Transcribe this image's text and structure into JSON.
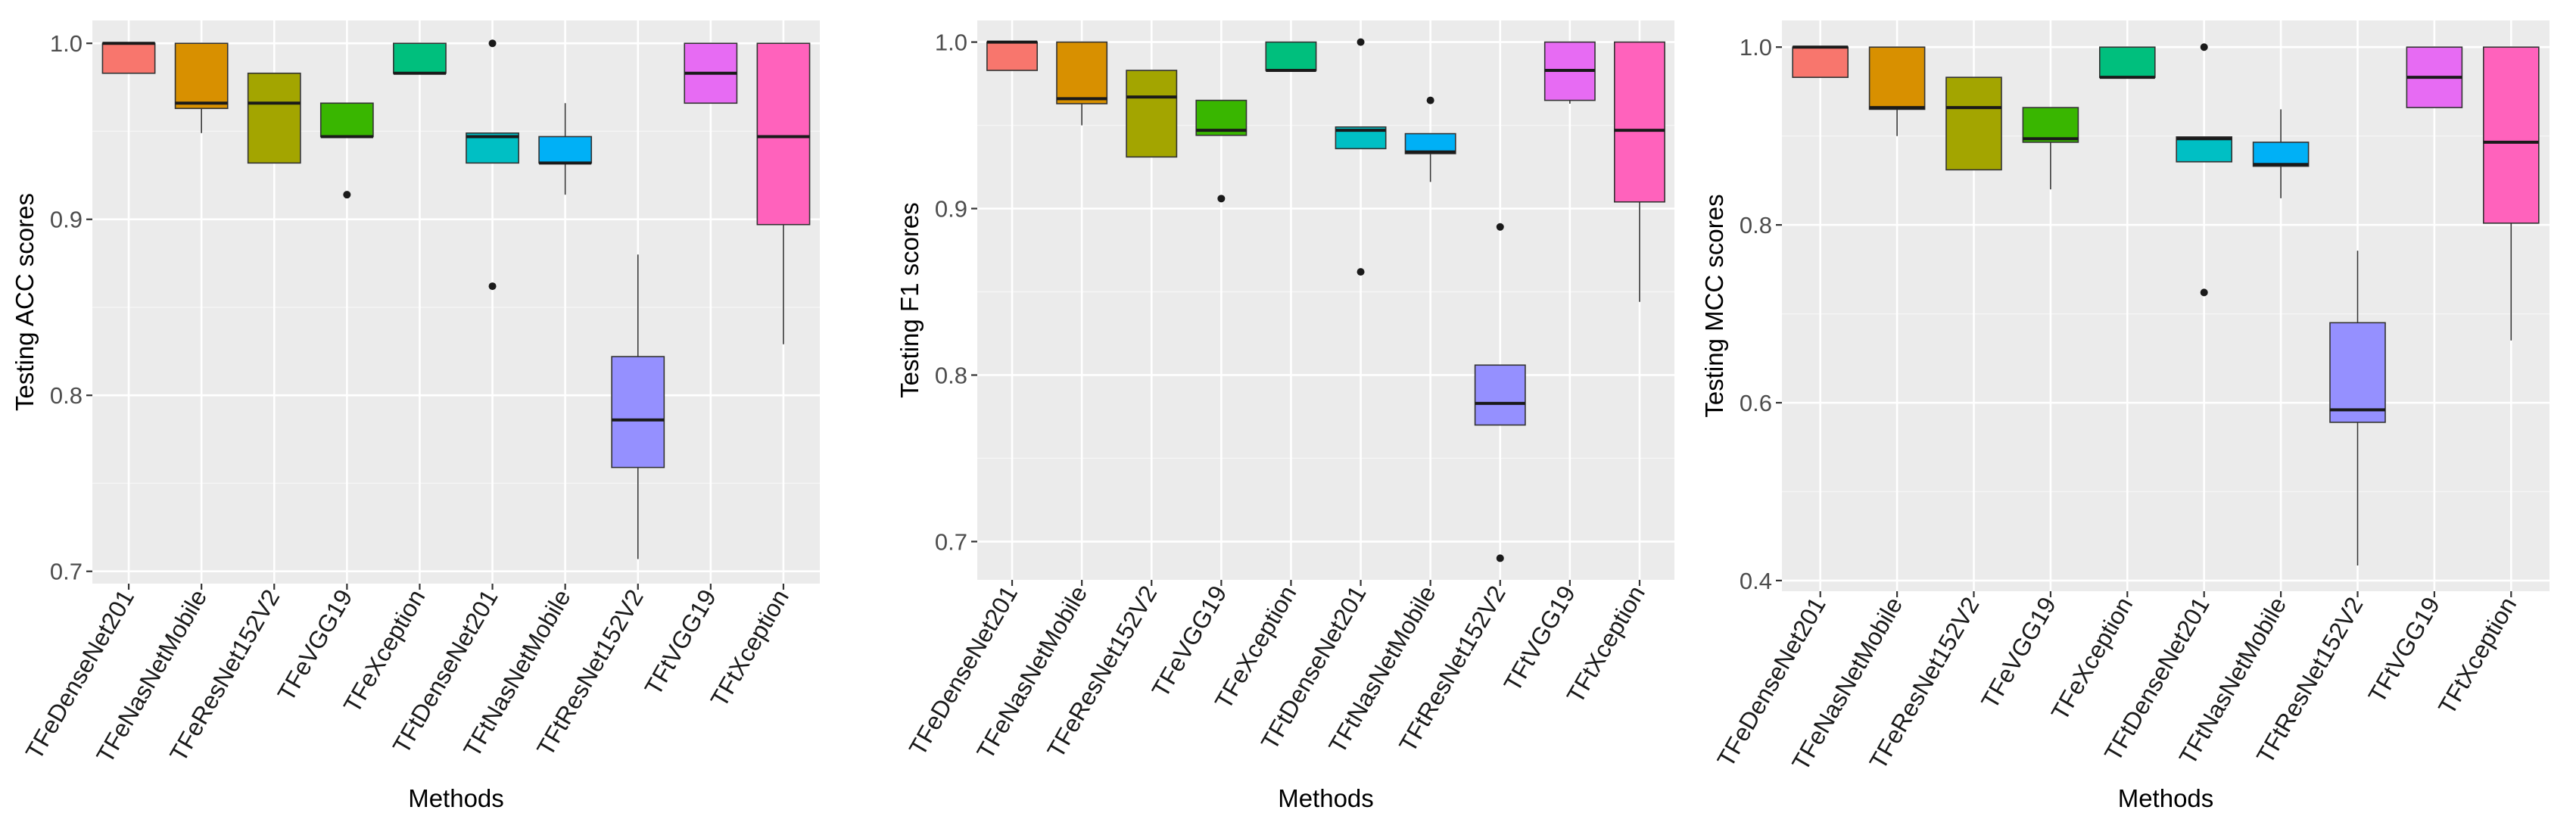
{
  "colors": {
    "TFeDenseNet201": "#F8766D",
    "TFeNasNetMobile": "#D89000",
    "TFeResNet152V2": "#A3A500",
    "TFeVGG19": "#39B600",
    "TFeXception": "#00BF7D",
    "TFtDenseNet201": "#00BFC4",
    "TFtNasNetMobile": "#00B0F6",
    "TFtResNet152V2": "#9590FF",
    "TFtVGG19": "#E76BF3",
    "TFtXception": "#FF62BC"
  },
  "chart_data": [
    {
      "type": "boxplot",
      "xlabel": "Methods",
      "ylabel": "Testing ACC scores",
      "ylim": [
        0.693,
        1.013
      ],
      "yticks": [
        0.7,
        0.8,
        0.9,
        1.0
      ],
      "ytick_labels": [
        "0.7",
        "0.8",
        "0.9",
        "1.0"
      ],
      "grid": true,
      "categories": [
        "TFeDenseNet201",
        "TFeNasNetMobile",
        "TFeResNet152V2",
        "TFeVGG19",
        "TFeXception",
        "TFtDenseNet201",
        "TFtNasNetMobile",
        "TFtResNet152V2",
        "TFtVGG19",
        "TFtXception"
      ],
      "boxes": [
        {
          "min": 0.983,
          "q1": 0.983,
          "median": 1.0,
          "q3": 1.0,
          "max": 1.0,
          "outliers": []
        },
        {
          "min": 0.949,
          "q1": 0.963,
          "median": 0.966,
          "q3": 1.0,
          "max": 1.0,
          "outliers": []
        },
        {
          "min": 0.932,
          "q1": 0.932,
          "median": 0.966,
          "q3": 0.983,
          "max": 0.983,
          "outliers": []
        },
        {
          "min": 0.947,
          "q1": 0.947,
          "median": 0.947,
          "q3": 0.966,
          "max": 0.966,
          "outliers": [
            0.914
          ]
        },
        {
          "min": 0.983,
          "q1": 0.983,
          "median": 0.983,
          "q3": 1.0,
          "max": 1.0,
          "outliers": []
        },
        {
          "min": 0.932,
          "q1": 0.932,
          "median": 0.947,
          "q3": 0.949,
          "max": 0.949,
          "outliers": [
            1.0,
            0.862
          ]
        },
        {
          "min": 0.914,
          "q1": 0.932,
          "median": 0.932,
          "q3": 0.947,
          "max": 0.966,
          "outliers": []
        },
        {
          "min": 0.707,
          "q1": 0.759,
          "median": 0.786,
          "q3": 0.822,
          "max": 0.88,
          "outliers": []
        },
        {
          "min": 0.966,
          "q1": 0.966,
          "median": 0.983,
          "q3": 1.0,
          "max": 1.0,
          "outliers": []
        },
        {
          "min": 0.829,
          "q1": 0.897,
          "median": 0.947,
          "q3": 1.0,
          "max": 1.0,
          "outliers": []
        }
      ]
    },
    {
      "type": "boxplot",
      "xlabel": "Methods",
      "ylabel": "Testing F1 scores",
      "ylim": [
        0.677,
        1.013
      ],
      "yticks": [
        0.7,
        0.8,
        0.9,
        1.0
      ],
      "ytick_labels": [
        "0.7",
        "0.8",
        "0.9",
        "1.0"
      ],
      "grid": true,
      "categories": [
        "TFeDenseNet201",
        "TFeNasNetMobile",
        "TFeResNet152V2",
        "TFeVGG19",
        "TFeXception",
        "TFtDenseNet201",
        "TFtNasNetMobile",
        "TFtResNet152V2",
        "TFtVGG19",
        "TFtXception"
      ],
      "boxes": [
        {
          "min": 0.983,
          "q1": 0.983,
          "median": 1.0,
          "q3": 1.0,
          "max": 1.0,
          "outliers": []
        },
        {
          "min": 0.95,
          "q1": 0.963,
          "median": 0.966,
          "q3": 1.0,
          "max": 1.0,
          "outliers": []
        },
        {
          "min": 0.931,
          "q1": 0.931,
          "median": 0.967,
          "q3": 0.983,
          "max": 0.983,
          "outliers": []
        },
        {
          "min": 0.944,
          "q1": 0.944,
          "median": 0.947,
          "q3": 0.965,
          "max": 0.965,
          "outliers": [
            0.906
          ]
        },
        {
          "min": 0.983,
          "q1": 0.983,
          "median": 0.983,
          "q3": 1.0,
          "max": 1.0,
          "outliers": []
        },
        {
          "min": 0.936,
          "q1": 0.936,
          "median": 0.947,
          "q3": 0.949,
          "max": 0.949,
          "outliers": [
            1.0,
            0.862
          ]
        },
        {
          "min": 0.916,
          "q1": 0.933,
          "median": 0.934,
          "q3": 0.945,
          "max": 0.945,
          "outliers": [
            0.965
          ]
        },
        {
          "min": 0.77,
          "q1": 0.77,
          "median": 0.783,
          "q3": 0.806,
          "max": 0.806,
          "outliers": [
            0.889,
            0.69
          ]
        },
        {
          "min": 0.963,
          "q1": 0.965,
          "median": 0.983,
          "q3": 1.0,
          "max": 1.0,
          "outliers": []
        },
        {
          "min": 0.844,
          "q1": 0.904,
          "median": 0.947,
          "q3": 1.0,
          "max": 1.0,
          "outliers": []
        }
      ]
    },
    {
      "type": "boxplot",
      "xlabel": "Methods",
      "ylabel": "Testing MCC scores",
      "ylim": [
        0.388,
        1.03
      ],
      "yticks": [
        0.4,
        0.6,
        0.8,
        1.0
      ],
      "ytick_labels": [
        "0.4",
        "0.6",
        "0.8",
        "1.0"
      ],
      "grid": true,
      "categories": [
        "TFeDenseNet201",
        "TFeNasNetMobile",
        "TFeResNet152V2",
        "TFeVGG19",
        "TFeXception",
        "TFtDenseNet201",
        "TFtNasNetMobile",
        "TFtResNet152V2",
        "TFtVGG19",
        "TFtXception"
      ],
      "boxes": [
        {
          "min": 0.966,
          "q1": 0.966,
          "median": 1.0,
          "q3": 1.0,
          "max": 1.0,
          "outliers": []
        },
        {
          "min": 0.9,
          "q1": 0.93,
          "median": 0.932,
          "q3": 1.0,
          "max": 1.0,
          "outliers": []
        },
        {
          "min": 0.862,
          "q1": 0.862,
          "median": 0.932,
          "q3": 0.966,
          "max": 0.966,
          "outliers": []
        },
        {
          "min": 0.84,
          "q1": 0.893,
          "median": 0.897,
          "q3": 0.932,
          "max": 0.932,
          "outliers": []
        },
        {
          "min": 0.966,
          "q1": 0.966,
          "median": 0.966,
          "q3": 1.0,
          "max": 1.0,
          "outliers": []
        },
        {
          "min": 0.871,
          "q1": 0.871,
          "median": 0.897,
          "q3": 0.899,
          "max": 0.899,
          "outliers": [
            1.0,
            0.724
          ]
        },
        {
          "min": 0.83,
          "q1": 0.866,
          "median": 0.868,
          "q3": 0.893,
          "max": 0.93,
          "outliers": []
        },
        {
          "min": 0.417,
          "q1": 0.578,
          "median": 0.592,
          "q3": 0.69,
          "max": 0.771,
          "outliers": []
        },
        {
          "min": 0.932,
          "q1": 0.932,
          "median": 0.966,
          "q3": 1.0,
          "max": 1.0,
          "outliers": []
        },
        {
          "min": 0.67,
          "q1": 0.802,
          "median": 0.893,
          "q3": 1.0,
          "max": 1.0,
          "outliers": []
        }
      ]
    }
  ]
}
